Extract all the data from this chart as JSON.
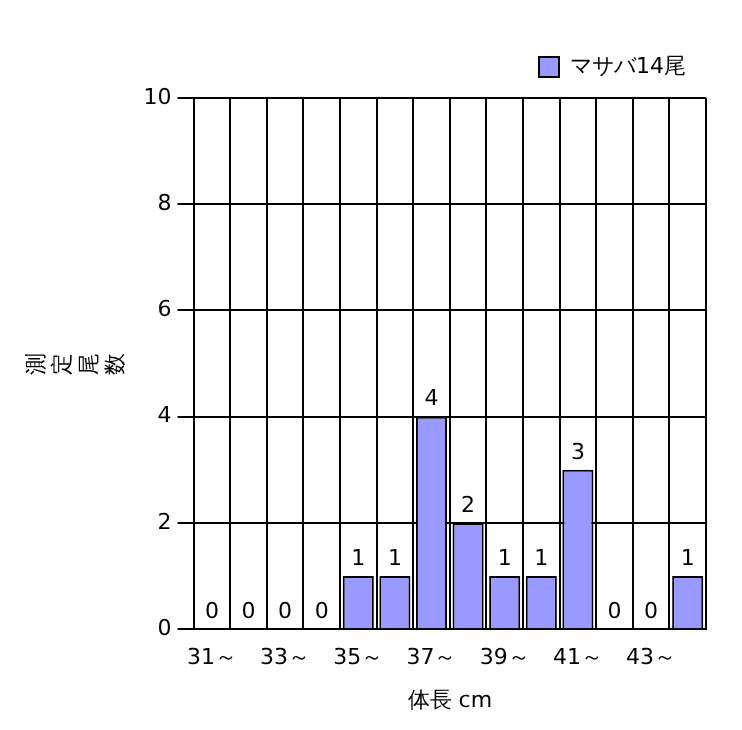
{
  "chart_data": {
    "type": "bar",
    "xlabel": "体長 cm",
    "ylabel": "測定尾数",
    "categories": [
      "31～",
      null,
      "33～",
      null,
      "35～",
      null,
      "37～",
      null,
      "39～",
      null,
      "41～",
      null,
      "43～",
      null
    ],
    "series": [
      {
        "name": "マサバ14尾",
        "color": "#9999ff",
        "values": [
          0,
          0,
          0,
          0,
          1,
          1,
          4,
          2,
          1,
          1,
          3,
          0,
          0,
          1
        ]
      }
    ],
    "ylim": [
      0,
      10
    ],
    "yticks": [
      0,
      2,
      4,
      6,
      8,
      10
    ],
    "grid": true,
    "legend": "top right",
    "data_labels": true
  }
}
